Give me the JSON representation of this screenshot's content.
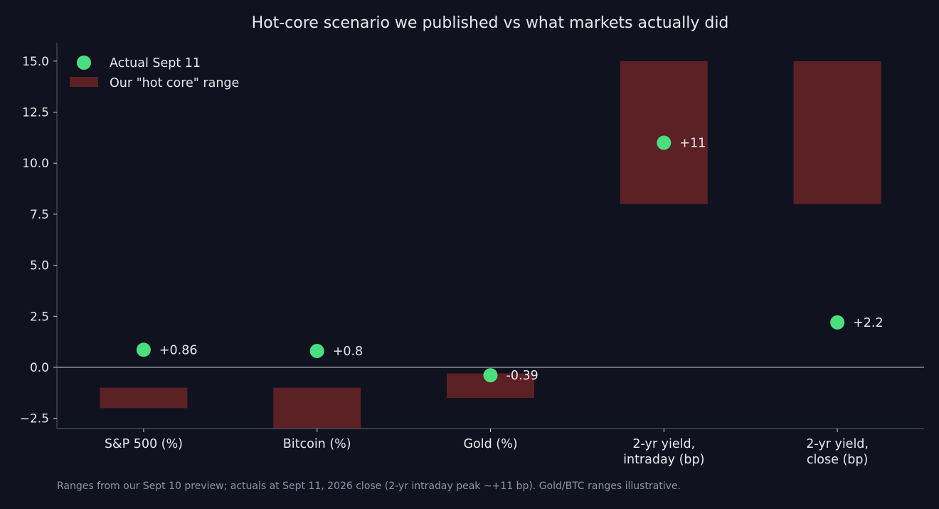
{
  "chart_data": {
    "type": "bar",
    "title": "Hot-core scenario we published vs what markets actually did",
    "categories": [
      [
        "S&P 500 (%)"
      ],
      [
        "Bitcoin (%)"
      ],
      [
        "Gold (%)"
      ],
      [
        "2-yr yield,",
        "intraday (bp)"
      ],
      [
        "2-yr yield,",
        "close (bp)"
      ]
    ],
    "ranges": [
      [
        -2.0,
        -1.0
      ],
      [
        -3.5,
        -1.0
      ],
      [
        -1.5,
        -0.3
      ],
      [
        8.0,
        15.0
      ],
      [
        8.0,
        15.0
      ]
    ],
    "actuals": [
      0.86,
      0.8,
      -0.39,
      11,
      2.2
    ],
    "actual_labels": [
      "+0.86",
      "+0.8",
      "-0.39",
      "+11",
      "+2.2"
    ],
    "ylim": [
      -3.0,
      15.9
    ],
    "yticks": [
      -2.5,
      0.0,
      2.5,
      5.0,
      7.5,
      10.0,
      12.5,
      15.0
    ],
    "ytick_labels": [
      "−2.5",
      "0.0",
      "2.5",
      "5.0",
      "7.5",
      "10.0",
      "12.5",
      "15.0"
    ],
    "legend": {
      "position": "top-left",
      "entries": [
        "Actual Sept 11",
        "Our \"hot core\" range"
      ]
    },
    "colors": {
      "background": "#10131f",
      "range_fill": "#5c2125",
      "actual_marker": "#4ade80",
      "zero_line": "#8a8a8a",
      "axis": "#565b6b"
    },
    "xlabel": "",
    "ylabel": ""
  },
  "footnote": "Ranges from our Sept 10 preview; actuals at Sept 11, 2026 close (2-yr intraday peak ~+11 bp). Gold/BTC ranges illustrative."
}
